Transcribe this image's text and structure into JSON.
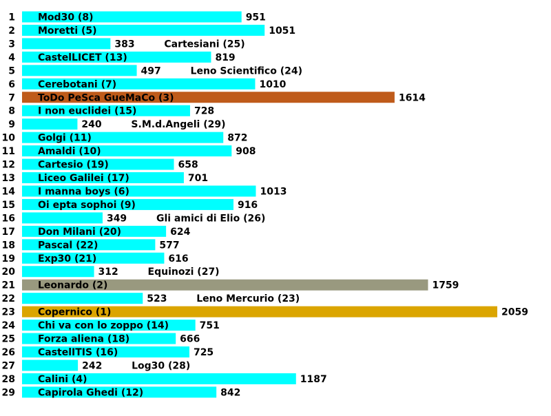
{
  "chart_data": {
    "type": "bar",
    "orientation": "horizontal",
    "title": "",
    "xlabel": "",
    "ylabel": "",
    "xlim": [
      0,
      2059
    ],
    "grid": false,
    "categories": [
      "1",
      "2",
      "3",
      "4",
      "5",
      "6",
      "7",
      "8",
      "9",
      "10",
      "11",
      "12",
      "13",
      "14",
      "15",
      "16",
      "17",
      "18",
      "19",
      "20",
      "21",
      "22",
      "23",
      "24",
      "25",
      "26",
      "27",
      "28",
      "29"
    ],
    "labels": [
      "Mod30 (8)",
      "Moretti (5)",
      "Cartesiani (25)",
      "CastelLICET (13)",
      "Leno Scientifico (24)",
      "Cerebotani (7)",
      "ToDo PeSca GueMaCo (3)",
      "I non euclidei (15)",
      "S.M.d.Angeli (29)",
      "Golgi (11)",
      "Amaldi (10)",
      "Cartesio (19)",
      "Liceo Galilei (17)",
      "I manna boys (6)",
      "Oi epta sophoi (9)",
      "Gli amici di Elio (26)",
      "Don Milani (20)",
      "Pascal (22)",
      "Exp30 (21)",
      "Equinozi (27)",
      "Leonardo (2)",
      "Leno Mercurio (23)",
      "Copernico (1)",
      "Chi va con lo zoppo (14)",
      "Forza aliena (18)",
      "CastelITIS (16)",
      "Log30 (28)",
      "Calini (4)",
      "Capirola Ghedi (12)"
    ],
    "values": [
      951,
      1051,
      383,
      819,
      497,
      1010,
      1614,
      728,
      240,
      872,
      908,
      658,
      701,
      1013,
      916,
      349,
      624,
      577,
      616,
      312,
      1759,
      523,
      2059,
      751,
      666,
      725,
      242,
      1187,
      842
    ],
    "colors": {
      "default": "#00ffff",
      "rank1": "#dba500",
      "rank2": "#99997f",
      "rank3": "#bf5b1a"
    },
    "highlight": {
      "7": "rank3",
      "21": "rank2",
      "23": "rank1"
    }
  }
}
